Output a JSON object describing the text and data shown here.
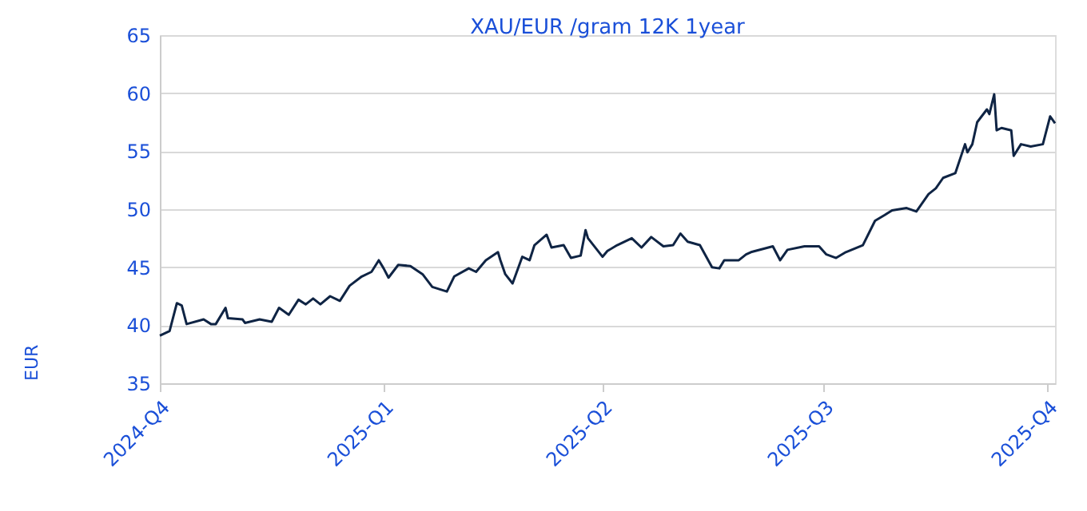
{
  "chart_data": {
    "type": "line",
    "title": "XAU/EUR /gram 12K 1year",
    "ylabel": "EUR",
    "x": [
      "2024-10-01",
      "2024-10-05",
      "2024-10-08",
      "2024-10-10",
      "2024-10-12",
      "2024-10-19",
      "2024-10-22",
      "2024-10-24",
      "2024-10-28",
      "2024-10-29",
      "2024-11-04",
      "2024-11-05",
      "2024-11-11",
      "2024-11-16",
      "2024-11-19",
      "2024-11-23",
      "2024-11-27",
      "2024-11-30",
      "2024-12-03",
      "2024-12-06",
      "2024-12-10",
      "2024-12-14",
      "2024-12-18",
      "2024-12-23",
      "2024-12-27",
      "2024-12-30",
      "2025-01-01",
      "2025-01-03",
      "2025-01-07",
      "2025-01-12",
      "2025-01-17",
      "2025-01-21",
      "2025-01-27",
      "2025-01-30",
      "2025-02-05",
      "2025-02-08",
      "2025-02-12",
      "2025-02-17",
      "2025-02-18",
      "2025-02-20",
      "2025-02-23",
      "2025-02-27",
      "2025-03-02",
      "2025-03-04",
      "2025-03-09",
      "2025-03-11",
      "2025-03-16",
      "2025-03-19",
      "2025-03-23",
      "2025-03-25",
      "2025-03-26",
      "2025-04-01",
      "2025-04-03",
      "2025-04-07",
      "2025-04-13",
      "2025-04-17",
      "2025-04-21",
      "2025-04-26",
      "2025-04-30",
      "2025-05-03",
      "2025-05-06",
      "2025-05-11",
      "2025-05-16",
      "2025-05-19",
      "2025-05-21",
      "2025-05-27",
      "2025-05-30",
      "2025-06-01",
      "2025-06-10",
      "2025-06-13",
      "2025-06-16",
      "2025-06-23",
      "2025-06-29",
      "2025-07-02",
      "2025-07-06",
      "2025-07-10",
      "2025-07-17",
      "2025-07-22",
      "2025-07-26",
      "2025-07-29",
      "2025-08-04",
      "2025-08-08",
      "2025-08-13",
      "2025-08-16",
      "2025-08-19",
      "2025-08-24",
      "2025-08-28",
      "2025-08-29",
      "2025-08-31",
      "2025-09-02",
      "2025-09-06",
      "2025-09-07",
      "2025-09-09",
      "2025-09-10",
      "2025-09-12",
      "2025-09-16",
      "2025-09-17",
      "2025-09-20",
      "2025-09-24",
      "2025-09-29",
      "2025-10-02",
      "2025-10-04"
    ],
    "series": [
      {
        "color": "#0f2444",
        "values": [
          39.1,
          39.5,
          41.9,
          41.7,
          40.1,
          40.5,
          40.1,
          40.1,
          41.5,
          40.6,
          40.5,
          40.2,
          40.5,
          40.3,
          41.5,
          40.9,
          42.2,
          41.8,
          42.3,
          41.8,
          42.5,
          42.1,
          43.4,
          44.2,
          44.6,
          45.6,
          44.9,
          44.1,
          45.2,
          45.1,
          44.4,
          43.3,
          42.9,
          44.2,
          44.9,
          44.6,
          45.6,
          46.3,
          45.6,
          44.4,
          43.6,
          45.9,
          45.6,
          46.9,
          47.8,
          46.7,
          46.9,
          45.8,
          46.0,
          48.2,
          47.5,
          45.9,
          46.4,
          46.9,
          47.5,
          46.7,
          47.6,
          46.8,
          46.9,
          47.9,
          47.2,
          46.9,
          45.0,
          44.9,
          45.6,
          45.6,
          46.1,
          46.3,
          46.8,
          45.6,
          46.5,
          46.8,
          46.8,
          46.1,
          45.8,
          46.3,
          46.9,
          49.0,
          49.5,
          49.9,
          50.1,
          49.8,
          51.3,
          51.8,
          52.7,
          53.1,
          55.6,
          54.9,
          55.6,
          57.5,
          58.6,
          58.2,
          59.9,
          56.8,
          57.0,
          56.8,
          54.6,
          55.6,
          55.4,
          55.6,
          58.0,
          57.4
        ]
      }
    ],
    "xlim": [
      "2024-10-01",
      "2025-10-04"
    ],
    "xticks": [
      {
        "value": "2024-10-01",
        "label": "2024-Q4"
      },
      {
        "value": "2025-01-01",
        "label": "2025-Q1"
      },
      {
        "value": "2025-04-01",
        "label": "2025-Q2"
      },
      {
        "value": "2025-07-01",
        "label": "2025-Q3"
      },
      {
        "value": "2025-10-01",
        "label": "2025-Q4"
      }
    ],
    "ylim": [
      35,
      65
    ],
    "yticks": [
      35,
      40,
      45,
      50,
      55,
      60,
      65
    ],
    "grid": "y"
  }
}
